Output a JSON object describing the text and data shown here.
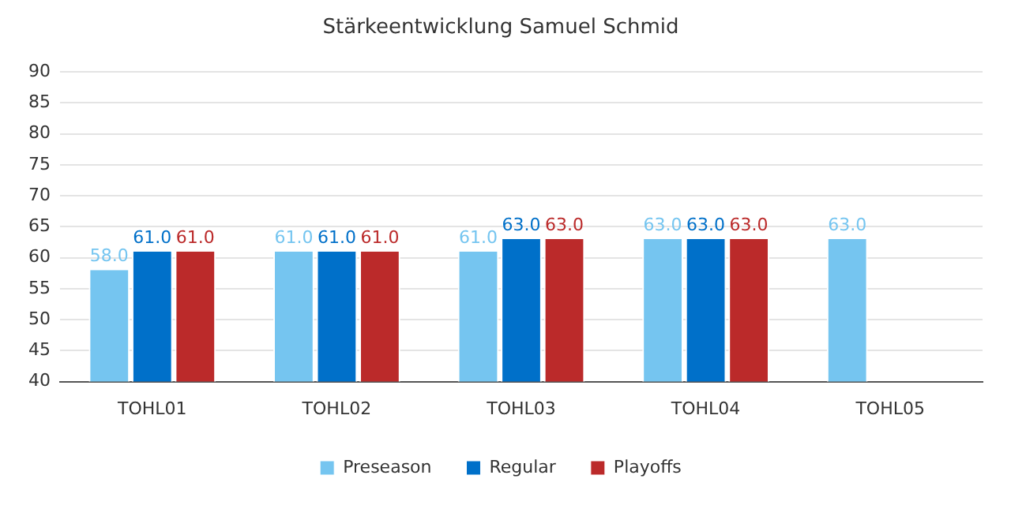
{
  "chart_data": {
    "type": "bar",
    "title": "Stärkeentwicklung Samuel Schmid",
    "categories": [
      "TOHL01",
      "TOHL02",
      "TOHL03",
      "TOHL04",
      "TOHL05"
    ],
    "series": [
      {
        "name": "Preseason",
        "color": "#75c5f0",
        "values": [
          58,
          61,
          61,
          63,
          63
        ],
        "value_labels": [
          "58.0",
          "61.0",
          "61.0",
          "63.0",
          "63.0"
        ]
      },
      {
        "name": "Regular",
        "color": "#0070c9",
        "values": [
          61,
          61,
          63,
          63,
          null
        ],
        "value_labels": [
          "61.0",
          "61.0",
          "63.0",
          "63.0",
          null
        ]
      },
      {
        "name": "Playoffs",
        "color": "#bb2a2a",
        "values": [
          61,
          61,
          63,
          63,
          null
        ],
        "value_labels": [
          "61.0",
          "61.0",
          "63.0",
          "63.0",
          null
        ]
      }
    ],
    "ylim": [
      40,
      90
    ],
    "yticks": [
      40,
      45,
      50,
      55,
      60,
      65,
      70,
      75,
      80,
      85,
      90
    ],
    "grid": "y",
    "legend": "bottom"
  }
}
